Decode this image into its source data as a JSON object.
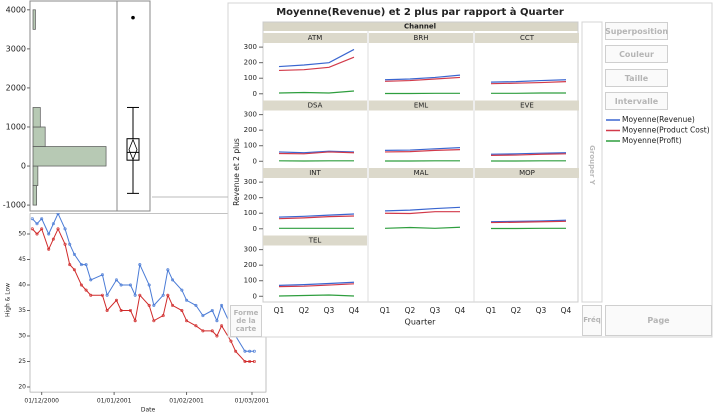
{
  "chart_data": [
    {
      "type": "line",
      "title": "Moyenne(Revenue) et 2 plus par rapport à Quarter",
      "facet_label": "Channel",
      "facets": [
        "ATM",
        "BRH",
        "CCT",
        "DSA",
        "EML",
        "EVE",
        "INT",
        "MAL",
        "MOP",
        "TEL"
      ],
      "categories": [
        "Q1",
        "Q2",
        "Q3",
        "Q4"
      ],
      "xlabel": "Quarter",
      "ylabel": "Revenue et 2 plus",
      "ylim": [
        -40,
        320
      ],
      "yticks": [
        0,
        100,
        200,
        300
      ],
      "series": [
        {
          "name": "Moyenne(Revenue)",
          "color": "#3a66d0",
          "values": [
            [
              175,
              185,
              200,
              285
            ],
            [
              90,
              95,
              105,
              120
            ],
            [
              75,
              78,
              85,
              90
            ],
            [
              60,
              55,
              65,
              60
            ],
            [
              70,
              72,
              80,
              88
            ],
            [
              45,
              48,
              52,
              55
            ],
            [
              75,
              80,
              88,
              95
            ],
            [
              115,
              120,
              130,
              138
            ],
            [
              45,
              48,
              50,
              55
            ],
            [
              70,
              75,
              82,
              90
            ]
          ]
        },
        {
          "name": "Moyenne(Product Cost)",
          "color": "#d23a4a",
          "values": [
            [
              150,
              155,
              170,
              235
            ],
            [
              80,
              85,
              95,
              105
            ],
            [
              65,
              68,
              72,
              78
            ],
            [
              50,
              48,
              60,
              55
            ],
            [
              60,
              62,
              70,
              75
            ],
            [
              38,
              40,
              45,
              48
            ],
            [
              65,
              70,
              78,
              82
            ],
            [
              100,
              98,
              110,
              110
            ],
            [
              40,
              42,
              45,
              48
            ],
            [
              62,
              65,
              72,
              80
            ]
          ]
        },
        {
          "name": "Moyenne(Profit)",
          "color": "#2e9e3e",
          "values": [
            [
              5,
              8,
              5,
              18
            ],
            [
              2,
              2,
              3,
              3
            ],
            [
              3,
              3,
              5,
              5
            ],
            [
              3,
              2,
              3,
              3
            ],
            [
              2,
              2,
              3,
              3
            ],
            [
              2,
              2,
              3,
              3
            ],
            [
              3,
              3,
              3,
              3
            ],
            [
              3,
              8,
              3,
              10
            ],
            [
              2,
              2,
              3,
              3
            ],
            [
              2,
              5,
              8,
              2
            ]
          ]
        }
      ]
    },
    {
      "type": "histogram",
      "bins": [
        -1000,
        -500,
        0,
        500,
        1000,
        1500,
        2000,
        2500,
        3000,
        3500,
        4000
      ],
      "counts": [
        3,
        4,
        60,
        10,
        6,
        0,
        0,
        0,
        0,
        2
      ],
      "color": "#b7c9b4",
      "xlim": [
        0,
        62
      ],
      "ylim": [
        -1100,
        4200
      ],
      "yticks": [
        -1000,
        0,
        1000,
        2000,
        3000,
        4000
      ],
      "box": {
        "min": -700,
        "q1": 150,
        "median": 350,
        "q3": 700,
        "max": 1500,
        "mean": 420,
        "outliers": [
          3800
        ]
      }
    },
    {
      "type": "line",
      "xlabel": "Date",
      "ylabel": "High & Low",
      "x": [
        "2000-11-27",
        "2000-11-29",
        "2000-12-01",
        "2000-12-04",
        "2000-12-06",
        "2000-12-08",
        "2000-12-11",
        "2000-12-13",
        "2000-12-15",
        "2000-12-18",
        "2000-12-20",
        "2000-12-22",
        "2000-12-27",
        "2000-12-29",
        "2001-01-02",
        "2001-01-04",
        "2001-01-08",
        "2001-01-10",
        "2001-01-12",
        "2001-01-16",
        "2001-01-18",
        "2001-01-22",
        "2001-01-24",
        "2001-01-26",
        "2001-01-30",
        "2001-02-01",
        "2001-02-05",
        "2001-02-08",
        "2001-02-12",
        "2001-02-14",
        "2001-02-16",
        "2001-02-20",
        "2001-02-22",
        "2001-02-26",
        "2001-02-28",
        "2001-03-02"
      ],
      "xlim": [
        "2000-11-26",
        "2001-03-07"
      ],
      "xticks": [
        {
          "value": "2000-12-01",
          "label": "01/12/2000"
        },
        {
          "value": "2001-01-01",
          "label": "01/01/2001"
        },
        {
          "value": "2001-02-01",
          "label": "01/02/2001"
        },
        {
          "value": "2001-03-01",
          "label": "01/03/2001"
        }
      ],
      "ylim": [
        19,
        54
      ],
      "yticks": [
        20,
        25,
        30,
        35,
        40,
        45,
        50
      ],
      "series": [
        {
          "color": "#4a7bd6",
          "values": [
            53,
            52,
            53,
            50,
            52,
            54,
            51,
            48,
            46,
            44,
            44,
            41,
            42,
            38,
            41,
            40,
            40,
            38,
            44,
            40,
            36,
            38,
            43,
            41,
            39,
            37,
            36,
            34,
            35,
            33,
            36,
            32,
            30,
            27,
            27,
            27
          ]
        },
        {
          "color": "#d02a2a",
          "values": [
            51,
            50,
            51,
            47,
            49,
            51,
            48,
            44,
            43,
            40,
            39,
            38,
            38,
            35,
            37,
            35,
            35,
            33,
            38,
            36,
            33,
            34,
            38,
            36,
            35,
            33,
            32,
            31,
            31,
            30,
            32,
            29,
            27,
            25,
            25,
            25
          ]
        }
      ]
    }
  ],
  "ui": {
    "overlay": "Superposition",
    "color": "Couleur",
    "size": "Taille",
    "interval": "Intervalle",
    "group_y": "Grouper Y",
    "freq": "Fréq",
    "page": "Page",
    "map_shape": "Forme de la carte"
  }
}
